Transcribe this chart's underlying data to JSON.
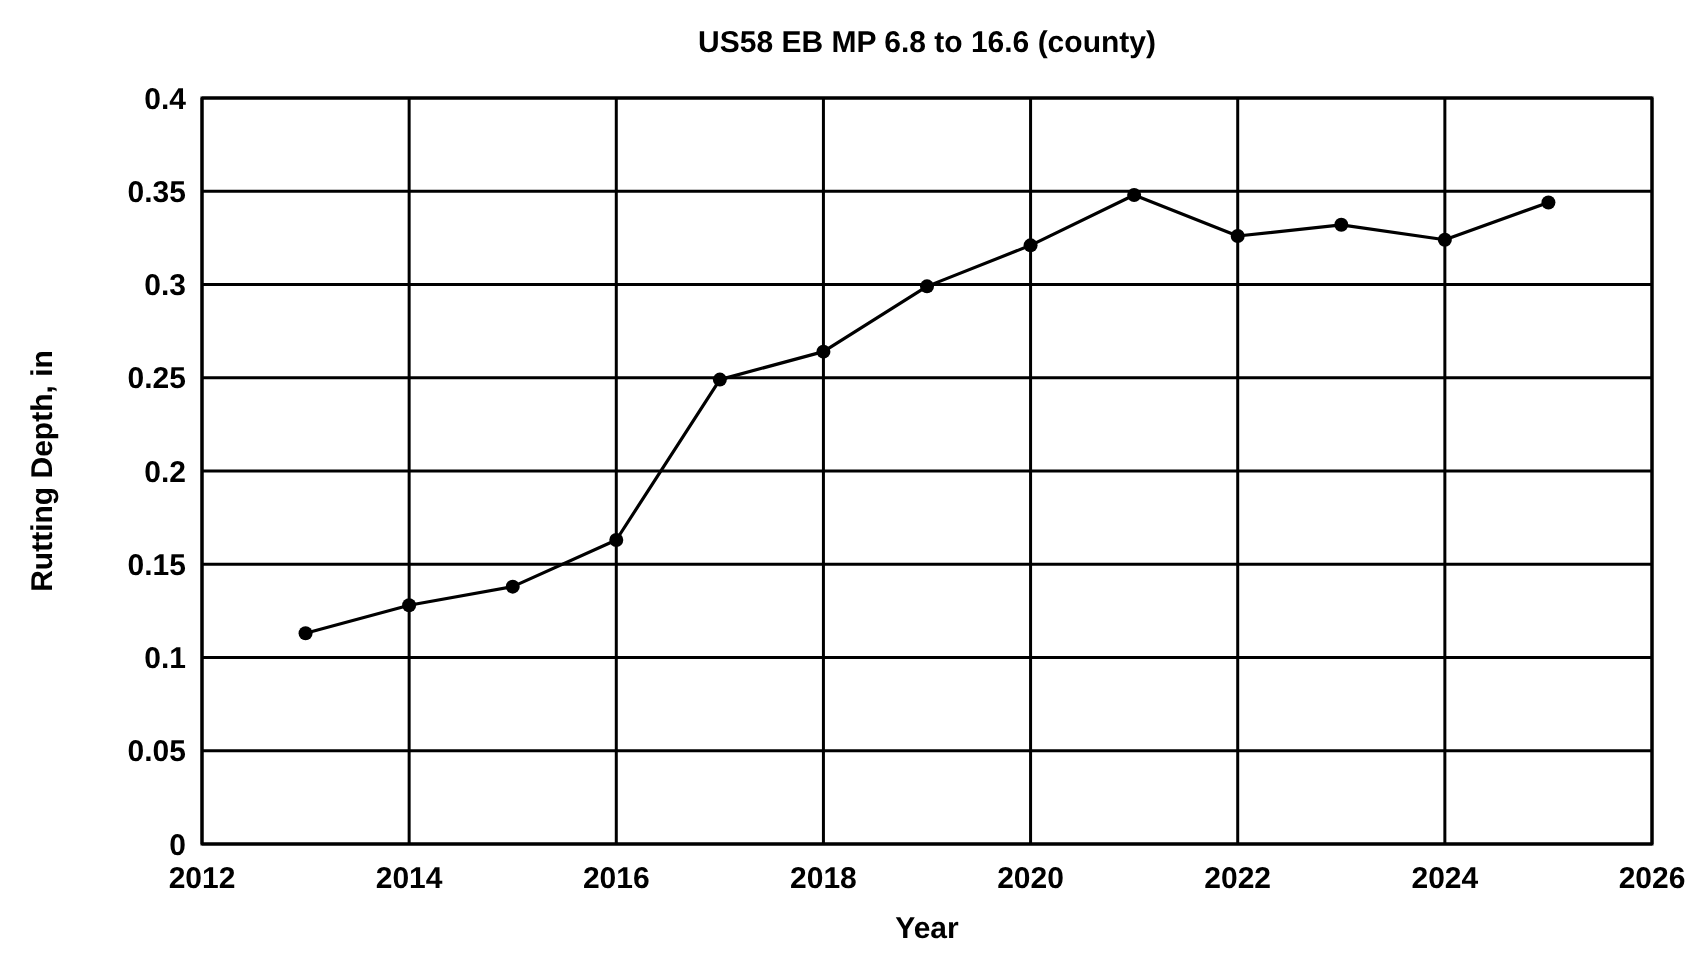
{
  "chart_data": {
    "type": "line",
    "title": "US58  EB  MP 6.8 to 16.6 (county)",
    "xlabel": "Year",
    "ylabel": "Rutting Depth, in",
    "x": [
      2013,
      2014,
      2015,
      2016,
      2017,
      2018,
      2019,
      2020,
      2021,
      2022,
      2023,
      2024,
      2025
    ],
    "series": [
      {
        "color": "#000000",
        "values": [
          0.113,
          0.128,
          0.138,
          0.163,
          0.249,
          0.264,
          0.299,
          0.321,
          0.348,
          0.326,
          0.332,
          0.324,
          0.344
        ]
      }
    ],
    "xlim": [
      2012,
      2026
    ],
    "xticks": [
      2012,
      2014,
      2016,
      2018,
      2020,
      2022,
      2024,
      2026
    ],
    "ylim": [
      0,
      0.4
    ],
    "yticks": [
      0,
      0.05,
      0.1,
      0.15,
      0.2,
      0.25,
      0.3,
      0.35,
      0.4
    ],
    "grid": true,
    "marker": "circle",
    "line_style": "solid"
  }
}
